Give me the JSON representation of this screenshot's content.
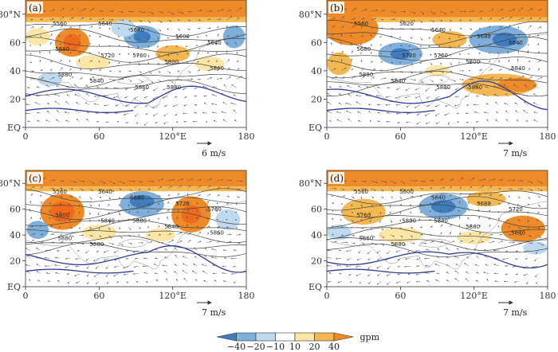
{
  "chart_data": [
    {
      "type": "heatmap",
      "panel_label": "(a)",
      "x_tick_labels": [
        "0",
        "60",
        "120°E",
        "180"
      ],
      "y_tick_labels": [
        "EQ",
        "20",
        "40",
        "60",
        "80°N"
      ],
      "xlim": [
        0,
        180
      ],
      "ylim": [
        0,
        90
      ],
      "reference_vector": "6 m/s",
      "contour_labels": [
        "5560",
        "5640",
        "5680",
        "5600",
        "5640",
        "5680",
        "5720",
        "5760",
        "5800",
        "5840",
        "5880",
        "5840",
        "5860",
        "5880"
      ],
      "anomaly_centers": [
        {
          "lon": 38,
          "lat": 60,
          "sign": "positive"
        },
        {
          "lon": 95,
          "lat": 64,
          "sign": "negative"
        },
        {
          "lon": 170,
          "lat": 64,
          "sign": "negative"
        },
        {
          "lon": 120,
          "lat": 52,
          "sign": "positive"
        }
      ]
    },
    {
      "type": "heatmap",
      "panel_label": "(b)",
      "x_tick_labels": [
        "0",
        "60",
        "120°E",
        "180"
      ],
      "y_tick_labels": [
        "EQ",
        "20",
        "40",
        "60",
        "80°N"
      ],
      "xlim": [
        0,
        180
      ],
      "ylim": [
        0,
        90
      ],
      "reference_vector": "7 m/s",
      "contour_labels": [
        "5560",
        "5620",
        "5640",
        "5680",
        "5640",
        "5680",
        "5720",
        "5760",
        "5800",
        "5840",
        "5880",
        "5840",
        "5880",
        "5880"
      ],
      "anomaly_centers": [
        {
          "lon": 20,
          "lat": 70,
          "sign": "positive"
        },
        {
          "lon": 60,
          "lat": 52,
          "sign": "negative"
        },
        {
          "lon": 145,
          "lat": 60,
          "sign": "negative"
        },
        {
          "lon": 140,
          "lat": 30,
          "sign": "positive"
        }
      ]
    },
    {
      "type": "heatmap",
      "panel_label": "(c)",
      "x_tick_labels": [
        "0",
        "60",
        "120°E",
        "180"
      ],
      "y_tick_labels": [
        "EQ",
        "20",
        "40",
        "60",
        "80°N"
      ],
      "xlim": [
        0,
        180
      ],
      "ylim": [
        0,
        90
      ],
      "reference_vector": "7 m/s",
      "contour_labels": [
        "5560",
        "5640",
        "5680",
        "5720",
        "5760",
        "5800",
        "5840",
        "5880",
        "5840",
        "5860",
        "5880",
        "5880"
      ],
      "anomaly_centers": [
        {
          "lon": 30,
          "lat": 58,
          "sign": "positive"
        },
        {
          "lon": 95,
          "lat": 62,
          "sign": "negative"
        },
        {
          "lon": 135,
          "lat": 56,
          "sign": "positive"
        },
        {
          "lon": 10,
          "lat": 45,
          "sign": "negative"
        }
      ]
    },
    {
      "type": "heatmap",
      "panel_label": "(d)",
      "x_tick_labels": [
        "0",
        "60",
        "120°E",
        "180"
      ],
      "y_tick_labels": [
        "EQ",
        "20",
        "40",
        "60",
        "80°N"
      ],
      "xlim": [
        0,
        180
      ],
      "ylim": [
        0,
        90
      ],
      "reference_vector": "7 m/s",
      "contour_labels": [
        "5560",
        "5600",
        "5640",
        "5680",
        "5720",
        "5760",
        "5800",
        "5840",
        "5880",
        "5840",
        "5860",
        "5880"
      ],
      "anomaly_centers": [
        {
          "lon": 95,
          "lat": 62,
          "sign": "negative"
        },
        {
          "lon": 30,
          "lat": 58,
          "sign": "positive"
        },
        {
          "lon": 160,
          "lat": 45,
          "sign": "positive"
        },
        {
          "lon": 130,
          "lat": 68,
          "sign": "positive"
        }
      ]
    }
  ],
  "colorbar": {
    "tick_labels": [
      "−40",
      "−20",
      "−10",
      "10",
      "20",
      "40"
    ],
    "unit": "gpm",
    "colors": [
      "#3f7cc0",
      "#7fb0dc",
      "#bfd9ee",
      "#ffffff",
      "#fbe6a6",
      "#f4b853",
      "#ee8a27"
    ]
  },
  "colors": {
    "contour": "#444444",
    "contour_5880": "#2f3c9a",
    "vector": "#555555"
  }
}
